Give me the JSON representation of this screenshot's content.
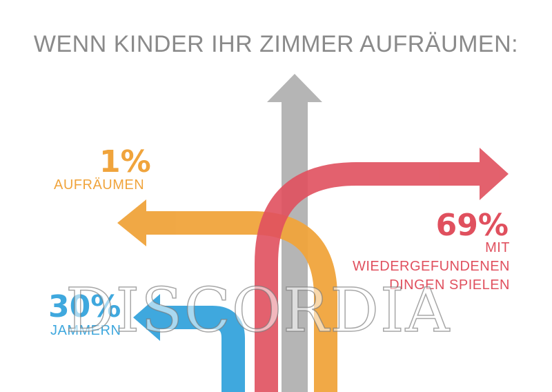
{
  "title": "WENN KINDER IHR ZIMMER AUFRÄUMEN:",
  "colors": {
    "gray": "#adadad",
    "orange": "#f0a43c",
    "red": "#e0505e",
    "blue": "#3fa8de",
    "title": "#8a8a8a"
  },
  "arrows": [
    {
      "id": "aufraeumen",
      "percent": "1%",
      "label_lines": [
        "AUFRÄUMEN"
      ],
      "color": "#f0a43c",
      "direction": "left"
    },
    {
      "id": "spielen",
      "percent": "69%",
      "label_lines": [
        "MIT",
        "WIEDERGEFUNDENEN",
        "DINGEN SPIELEN"
      ],
      "color": "#e0505e",
      "direction": "right"
    },
    {
      "id": "jammern",
      "percent": "30%",
      "label_lines": [
        "JAMMERN"
      ],
      "color": "#3fa8de",
      "direction": "left"
    },
    {
      "id": "center",
      "color": "#adadad",
      "direction": "up"
    }
  ],
  "watermark": "DISCORDIA"
}
